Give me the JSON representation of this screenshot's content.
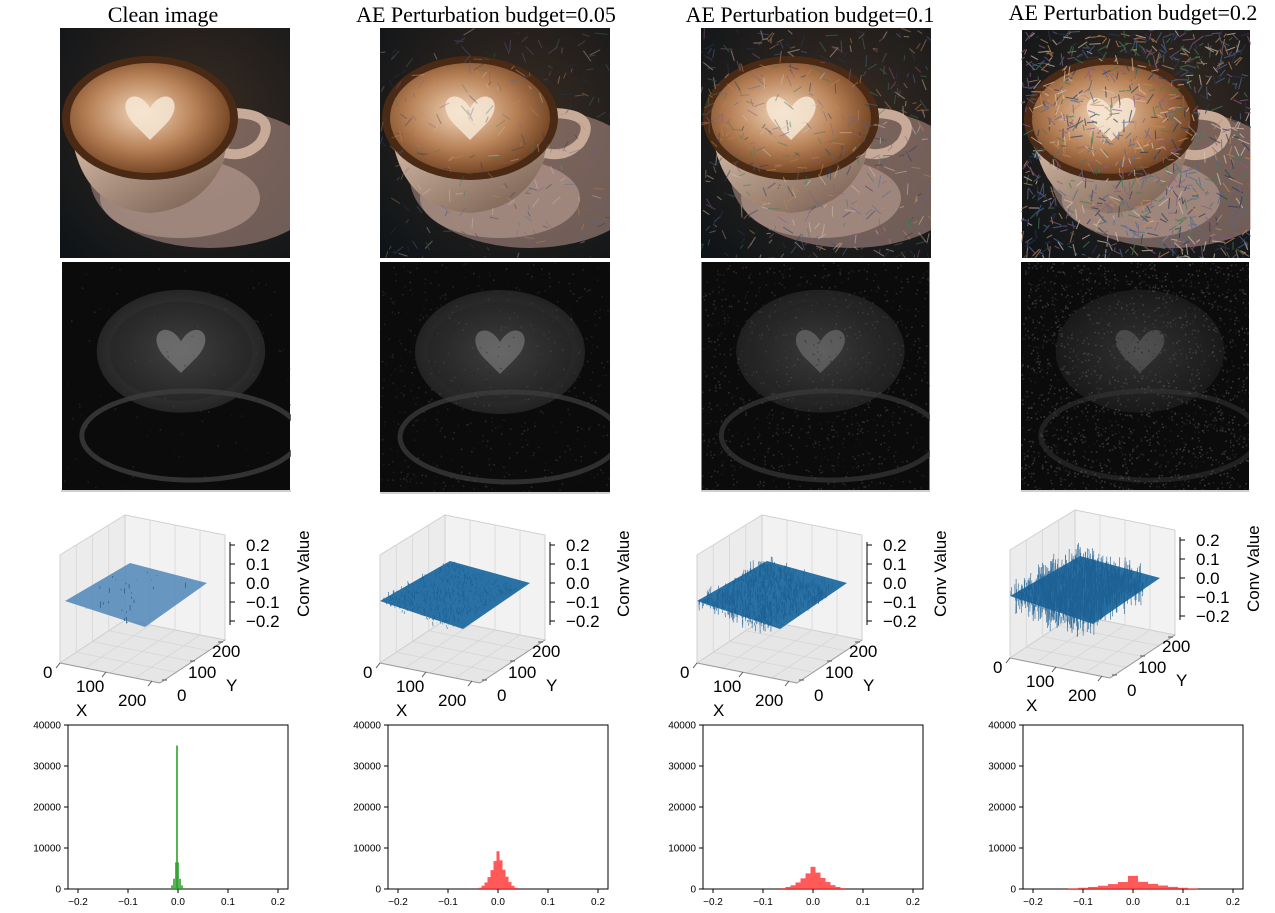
{
  "columns": [
    {
      "title": "Clean image",
      "budget": 0.0
    },
    {
      "title": "AE Perturbation budget=0.05",
      "budget": 0.05
    },
    {
      "title": "AE Perturbation budget=0.1",
      "budget": 0.1
    },
    {
      "title": "AE Perturbation budget=0.2",
      "budget": 0.2
    }
  ],
  "colors": {
    "surface": "#1f6aa0",
    "surface_clean": "#4f86b8",
    "hist_clean": "#2ca02c",
    "hist_adv": "#ff3030",
    "gray_bg": "#0b0b0b"
  },
  "chart_data": [
    {
      "type": "surface",
      "panel": "3d-conv-surface",
      "xlabel": "X",
      "ylabel": "Y",
      "zlabel": "Conv Value",
      "x_ticks": [
        "0",
        "100",
        "200"
      ],
      "y_ticks": [
        "0",
        "100",
        "200"
      ],
      "z_ticks": [
        "0.2",
        "0.1",
        "0.0",
        "−0.1",
        "−0.2"
      ],
      "xlim": [
        0,
        224
      ],
      "ylim": [
        0,
        224
      ],
      "zlim": [
        -0.2,
        0.2
      ]
    },
    {
      "type": "bar",
      "panel": "histograms",
      "x_ticks": [
        "−0.2",
        "−0.1",
        "0.0",
        "0.1",
        "0.2"
      ],
      "y_ticks": [
        "0",
        "10000",
        "20000",
        "30000",
        "40000"
      ],
      "xlim": [
        -0.22,
        0.22
      ],
      "ylim": [
        0,
        40000
      ],
      "series": [
        {
          "column": 0,
          "color": "hist_clean",
          "bins": [
            [
              -0.012,
              900
            ],
            [
              -0.008,
              2500
            ],
            [
              -0.004,
              6500
            ],
            [
              -0.002,
              35000
            ],
            [
              0.0,
              6500
            ],
            [
              0.004,
              2500
            ],
            [
              0.008,
              900
            ]
          ]
        },
        {
          "column": 1,
          "color": "hist_adv",
          "bins": [
            [
              -0.036,
              300
            ],
            [
              -0.03,
              800
            ],
            [
              -0.024,
              1600
            ],
            [
              -0.018,
              2900
            ],
            [
              -0.012,
              4600
            ],
            [
              -0.006,
              6800
            ],
            [
              0.0,
              9200
            ],
            [
              0.006,
              7000
            ],
            [
              0.012,
              4700
            ],
            [
              0.018,
              3000
            ],
            [
              0.024,
              1700
            ],
            [
              0.03,
              800
            ],
            [
              0.036,
              300
            ]
          ]
        },
        {
          "column": 2,
          "color": "hist_adv",
          "bins": [
            [
              -0.06,
              200
            ],
            [
              -0.05,
              500
            ],
            [
              -0.04,
              900
            ],
            [
              -0.03,
              1600
            ],
            [
              -0.02,
              2600
            ],
            [
              -0.01,
              3800
            ],
            [
              0.0,
              5400
            ],
            [
              0.01,
              4000
            ],
            [
              0.02,
              2700
            ],
            [
              0.03,
              1700
            ],
            [
              0.04,
              950
            ],
            [
              0.05,
              500
            ],
            [
              0.06,
              200
            ]
          ]
        },
        {
          "column": 3,
          "color": "hist_adv",
          "bins": [
            [
              -0.12,
              150
            ],
            [
              -0.1,
              300
            ],
            [
              -0.08,
              500
            ],
            [
              -0.06,
              800
            ],
            [
              -0.04,
              1200
            ],
            [
              -0.02,
              1700
            ],
            [
              0.0,
              3200
            ],
            [
              0.02,
              1750
            ],
            [
              0.04,
              1250
            ],
            [
              0.06,
              850
            ],
            [
              0.08,
              520
            ],
            [
              0.1,
              300
            ],
            [
              0.12,
              150
            ]
          ]
        }
      ]
    }
  ]
}
